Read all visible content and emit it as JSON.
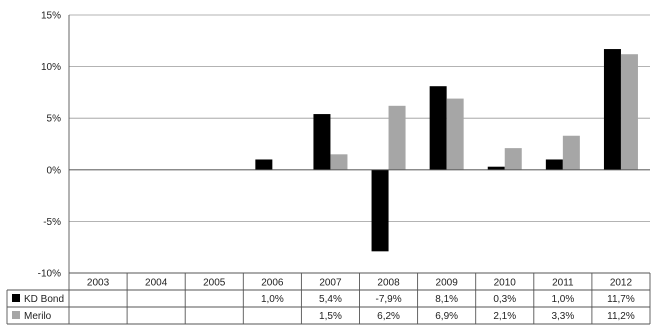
{
  "chart_data": {
    "type": "bar",
    "categories": [
      "2003",
      "2004",
      "2005",
      "2006",
      "2007",
      "2008",
      "2009",
      "2010",
      "2011",
      "2012"
    ],
    "series": [
      {
        "name": "KD Bond",
        "color": "#000000",
        "values": [
          null,
          null,
          null,
          1.0,
          5.4,
          -7.9,
          8.1,
          0.3,
          1.0,
          11.7
        ],
        "labels": [
          "",
          "",
          "",
          "1,0%",
          "5,4%",
          "-7,9%",
          "8,1%",
          "0,3%",
          "1,0%",
          "11,7%"
        ]
      },
      {
        "name": "Merilo",
        "color": "#a6a6a6",
        "values": [
          null,
          null,
          null,
          null,
          1.5,
          6.2,
          6.9,
          2.1,
          3.3,
          11.2
        ],
        "labels": [
          "",
          "",
          "",
          "",
          "1,5%",
          "6,2%",
          "6,9%",
          "2,1%",
          "3,3%",
          "11,2%"
        ]
      }
    ],
    "yticks": [
      "15%",
      "10%",
      "5%",
      "0%",
      "-5%",
      "-10%"
    ],
    "ytick_values": [
      15,
      10,
      5,
      0,
      -5,
      -10
    ],
    "ylim": [
      -10,
      15
    ],
    "grid": true,
    "legend": "data-table-rows"
  }
}
